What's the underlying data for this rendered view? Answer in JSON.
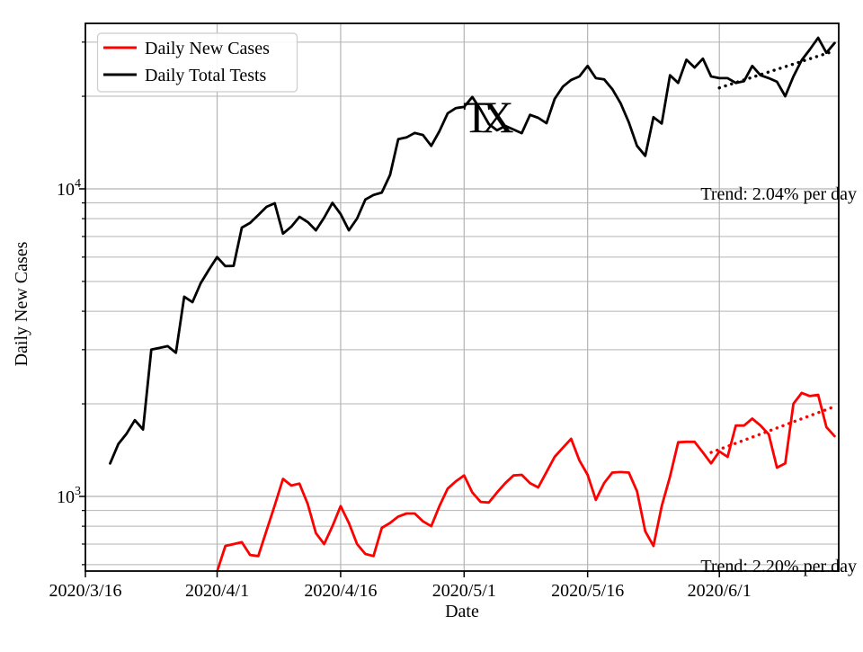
{
  "figure": {
    "background": "#ffffff",
    "frame_color": "#000000",
    "grid_color": "#b4b4b4",
    "accent_red": "#ff0000",
    "accent_black": "#000000"
  },
  "legend": {
    "position": "upper left",
    "border_color": "#cccccc",
    "entries": [
      {
        "label": "Daily New Cases",
        "color": "#ff0000"
      },
      {
        "label": "Daily Total Tests",
        "color": "#000000"
      }
    ]
  },
  "chart_data": {
    "type": "line",
    "title": "",
    "xlabel": "Date",
    "ylabel": "Daily New Cases",
    "grid": "both",
    "legend_position": "upper left",
    "x_axis": {
      "unit": "date",
      "min": "2020/3/16",
      "max_offset_days": 91.5,
      "ticks": [
        "2020/3/16",
        "2020/4/1",
        "2020/4/16",
        "2020/5/1",
        "2020/5/16",
        "2020/6/1"
      ]
    },
    "y_axis": {
      "scale": "log",
      "min": 571,
      "max": 34500,
      "major_ticks": [
        {
          "value": 1000,
          "base": "10",
          "exp": "3"
        },
        {
          "value": 10000,
          "base": "10",
          "exp": "4"
        }
      ],
      "minor_ticks": [
        600,
        700,
        800,
        900,
        2000,
        3000,
        4000,
        5000,
        6000,
        7000,
        8000,
        9000,
        20000,
        30000
      ]
    },
    "series": [
      {
        "name": "Daily New Cases",
        "color": "#ff0000",
        "line_style": "solid",
        "start_date": "2020/4/1",
        "values": [
          570,
          690,
          700,
          710,
          645,
          640,
          775,
          935,
          1140,
          1085,
          1100,
          945,
          760,
          700,
          800,
          930,
          820,
          700,
          650,
          640,
          790,
          820,
          860,
          880,
          880,
          830,
          800,
          930,
          1060,
          1120,
          1170,
          1030,
          960,
          955,
          1030,
          1105,
          1170,
          1175,
          1105,
          1070,
          1200,
          1345,
          1440,
          1540,
          1310,
          1175,
          975,
          1105,
          1195,
          1200,
          1195,
          1040,
          770,
          690,
          930,
          1160,
          1500,
          1505,
          1505,
          1390,
          1280,
          1400,
          1345,
          1700,
          1700,
          1790,
          1700,
          1590,
          1240,
          1280,
          2000,
          2170,
          2120,
          2140,
          1680,
          1570
        ]
      },
      {
        "name": "Daily Total Tests",
        "color": "#000000",
        "line_style": "solid",
        "start_date": "2020/3/19",
        "values": [
          1280,
          1480,
          1600,
          1770,
          1650,
          3000,
          3040,
          3080,
          2930,
          4460,
          4280,
          4930,
          5460,
          6000,
          5610,
          5620,
          7480,
          7750,
          8220,
          8740,
          8980,
          7150,
          7530,
          8110,
          7800,
          7330,
          8060,
          9000,
          8280,
          7330,
          8010,
          9230,
          9550,
          9730,
          11100,
          14500,
          14700,
          15200,
          14970,
          13800,
          15400,
          17600,
          18300,
          18460,
          19900,
          18100,
          16240,
          15500,
          16020,
          15600,
          15170,
          17400,
          17020,
          16350,
          19600,
          21500,
          22600,
          23200,
          25100,
          22900,
          22700,
          21100,
          19000,
          16450,
          13800,
          12800,
          17100,
          16300,
          23400,
          22100,
          26300,
          24800,
          26500,
          23200,
          22900,
          22900,
          22100,
          22400,
          25100,
          23400,
          22900,
          22300,
          20000,
          23200,
          26200,
          28400,
          31000,
          27700,
          29800
        ]
      }
    ],
    "trend_lines": [
      {
        "name": "tests-trend",
        "color": "#000000",
        "style": "dotted",
        "start": {
          "date": "2020/6/1",
          "value": 21300
        },
        "end": {
          "date": "2020/6/15",
          "value": 28100
        },
        "label": "Trend: 2.04% per day"
      },
      {
        "name": "cases-trend",
        "color": "#ff0000",
        "style": "dotted",
        "start": {
          "date": "2020/5/31",
          "value": 1390
        },
        "end": {
          "date": "2020/6/15",
          "value": 1960
        },
        "label": "Trend: 2.20% per day"
      }
    ],
    "annotations": {
      "state": {
        "text": "TX"
      },
      "tests_trend_label": {
        "text": "Trend: 2.04% per day"
      },
      "cases_trend_label": {
        "text": "Trend: 2.20% per day"
      }
    }
  }
}
